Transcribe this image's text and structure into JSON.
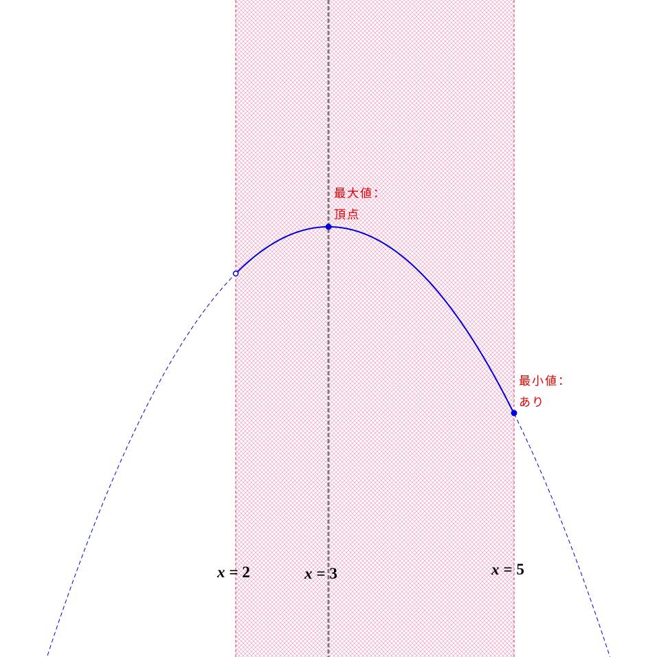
{
  "diagram": {
    "colors": {
      "region_hatch": "#e87fb0",
      "region_border": "#e0285a",
      "axis_line": "#7a7a7a",
      "curve": "#0000dd",
      "annotation": "#dd0000",
      "label": "#000000"
    },
    "lines": [
      {
        "id": "left",
        "var": "x",
        "eq": "= 2",
        "value": 2
      },
      {
        "id": "axis",
        "var": "x",
        "eq": "= 3",
        "value": 3
      },
      {
        "id": "right",
        "var": "x",
        "eq": "= 5",
        "value": 5
      }
    ],
    "annotations": {
      "max_line1": "最大値：",
      "max_line2": "頂点",
      "min_line1": "最小値：",
      "min_line2": "あり"
    },
    "points": {
      "left_endpoint": "open",
      "vertex": "closed",
      "right_endpoint": "closed"
    }
  }
}
